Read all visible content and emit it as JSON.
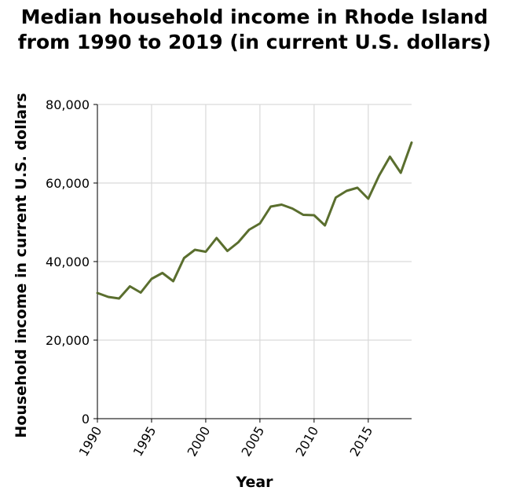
{
  "chart_data": {
    "type": "line",
    "title_lines": [
      "Median household income in Rhode Island",
      "from 1990 to 2019 (in current U.S. dollars)"
    ],
    "xlabel": "Year",
    "ylabel": "Household income in current U.S. dollars",
    "xlim": [
      1990,
      2019
    ],
    "ylim": [
      0,
      80000
    ],
    "x_ticks": [
      1990,
      1995,
      2000,
      2005,
      2010,
      2015
    ],
    "y_ticks": [
      0,
      20000,
      40000,
      60000,
      80000
    ],
    "y_tick_labels": [
      "0",
      "20,000",
      "40,000",
      "60,000",
      "80,000"
    ],
    "grid": true,
    "line_color": "#5a6e2e",
    "x": [
      1990,
      1991,
      1992,
      1993,
      1994,
      1995,
      1996,
      1997,
      1998,
      1999,
      2000,
      2001,
      2002,
      2003,
      2004,
      2005,
      2006,
      2007,
      2008,
      2009,
      2010,
      2011,
      2012,
      2013,
      2014,
      2015,
      2016,
      2017,
      2018,
      2019
    ],
    "values": [
      32000,
      31000,
      30600,
      33700,
      32100,
      35600,
      37100,
      35000,
      40900,
      43000,
      42500,
      46000,
      42700,
      44900,
      48100,
      49700,
      54000,
      54500,
      53500,
      51900,
      51800,
      49200,
      56300,
      58000,
      58800,
      56000,
      61900,
      66700,
      62600,
      70300
    ]
  }
}
